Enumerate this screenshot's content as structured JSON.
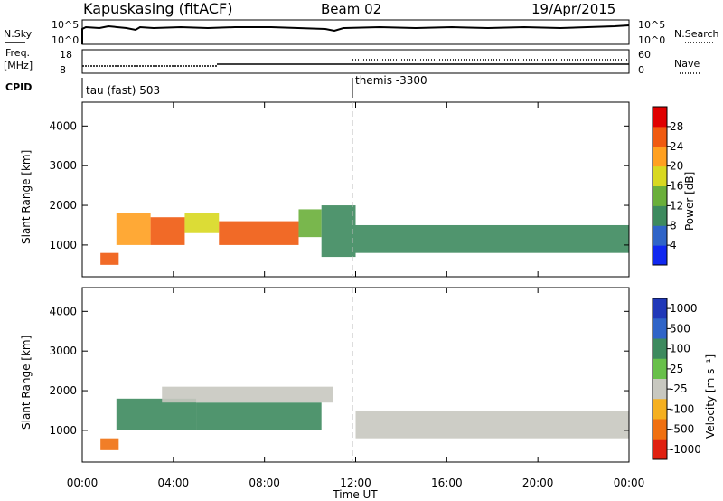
{
  "header": {
    "station": "Kapuskasing (fitACF)",
    "beam": "Beam 02",
    "date": "19/Apr/2015"
  },
  "summary_panel": {
    "nsky_label": "N.Sky",
    "nsky_ticks": [
      "10^5",
      "10^0"
    ],
    "nsearch_label": "N.Search",
    "nsearch_ticks": [
      "10^5",
      "10^0"
    ],
    "freq_label_1": "Freq.",
    "freq_label_2": "[MHz]",
    "freq_ticks": [
      "18",
      "8"
    ],
    "nave_label": "Nave",
    "nave_ticks": [
      "60",
      "0"
    ],
    "cpid_label": "CPID",
    "cpid_segments": [
      "tau (fast) 503",
      "themis -3300"
    ]
  },
  "colors": {
    "power_scale": [
      "#1028f0",
      "#2f64c8",
      "#3d8a5e",
      "#6aaf3a",
      "#d8d820",
      "#ffa020",
      "#f05a10",
      "#e00000"
    ],
    "velocity_scale": [
      "#2038b8",
      "#2f64c8",
      "#3d8a5e",
      "#68c04a",
      "#c8c8c0",
      "#f5b020",
      "#f07010",
      "#e02010"
    ],
    "ground_scatter": "#c8c8c0"
  },
  "chart_data": [
    {
      "type": "heatmap",
      "title": "",
      "xlabel": "Time UT",
      "ylabel": "Slant Range [km]",
      "x_ticks": [
        "00:00",
        "04:00",
        "08:00",
        "12:00",
        "16:00",
        "20:00",
        "00:00"
      ],
      "y_ticks": [
        "1000",
        "2000",
        "3000",
        "4000"
      ],
      "ylim": [
        200,
        4600
      ],
      "colorbar": {
        "label": "Power [dB]",
        "ticks": [
          "28",
          "24",
          "20",
          "16",
          "12",
          "8",
          "4"
        ],
        "range": [
          0,
          32
        ]
      },
      "regions": [
        {
          "time": [
            0.8,
            1.6
          ],
          "range": [
            500,
            800
          ],
          "power": 26
        },
        {
          "time": [
            1.5,
            3.0
          ],
          "range": [
            1000,
            1800
          ],
          "power": 20
        },
        {
          "time": [
            3.0,
            4.5
          ],
          "range": [
            1000,
            1700
          ],
          "power": 24
        },
        {
          "time": [
            4.5,
            6.0
          ],
          "range": [
            1300,
            1800
          ],
          "power": 16
        },
        {
          "time": [
            6.0,
            9.5
          ],
          "range": [
            1000,
            1600
          ],
          "power": 27
        },
        {
          "time": [
            9.5,
            10.5
          ],
          "range": [
            1200,
            1900
          ],
          "power": 14
        },
        {
          "time": [
            10.5,
            12.0
          ],
          "range": [
            700,
            2000
          ],
          "power": 10
        },
        {
          "time": [
            12.0,
            24.0
          ],
          "range": [
            800,
            1500
          ],
          "power": 10
        }
      ]
    },
    {
      "type": "heatmap",
      "title": "",
      "xlabel": "Time UT",
      "ylabel": "Slant Range [km]",
      "x_ticks": [
        "00:00",
        "04:00",
        "08:00",
        "12:00",
        "16:00",
        "20:00",
        "00:00"
      ],
      "y_ticks": [
        "1000",
        "2000",
        "3000",
        "4000"
      ],
      "ylim": [
        200,
        4600
      ],
      "colorbar": {
        "label": "Velocity [m s⁻¹]",
        "ticks": [
          "1000",
          "500",
          "100",
          "25",
          "-25",
          "-100",
          "-500",
          "-1000"
        ],
        "range": [
          -1000,
          1000
        ]
      },
      "regions": [
        {
          "time": [
            0.8,
            1.6
          ],
          "range": [
            500,
            800
          ],
          "velocity": -300
        },
        {
          "time": [
            1.5,
            5.0
          ],
          "range": [
            1000,
            1800
          ],
          "velocity": 100
        },
        {
          "time": [
            5.0,
            10.5
          ],
          "range": [
            1000,
            1700
          ],
          "velocity": 200
        },
        {
          "time": [
            3.5,
            11.0
          ],
          "range": [
            1700,
            2100
          ],
          "velocity": 0
        },
        {
          "time": [
            12.0,
            24.0
          ],
          "range": [
            800,
            1500
          ],
          "velocity": 0
        }
      ]
    }
  ]
}
